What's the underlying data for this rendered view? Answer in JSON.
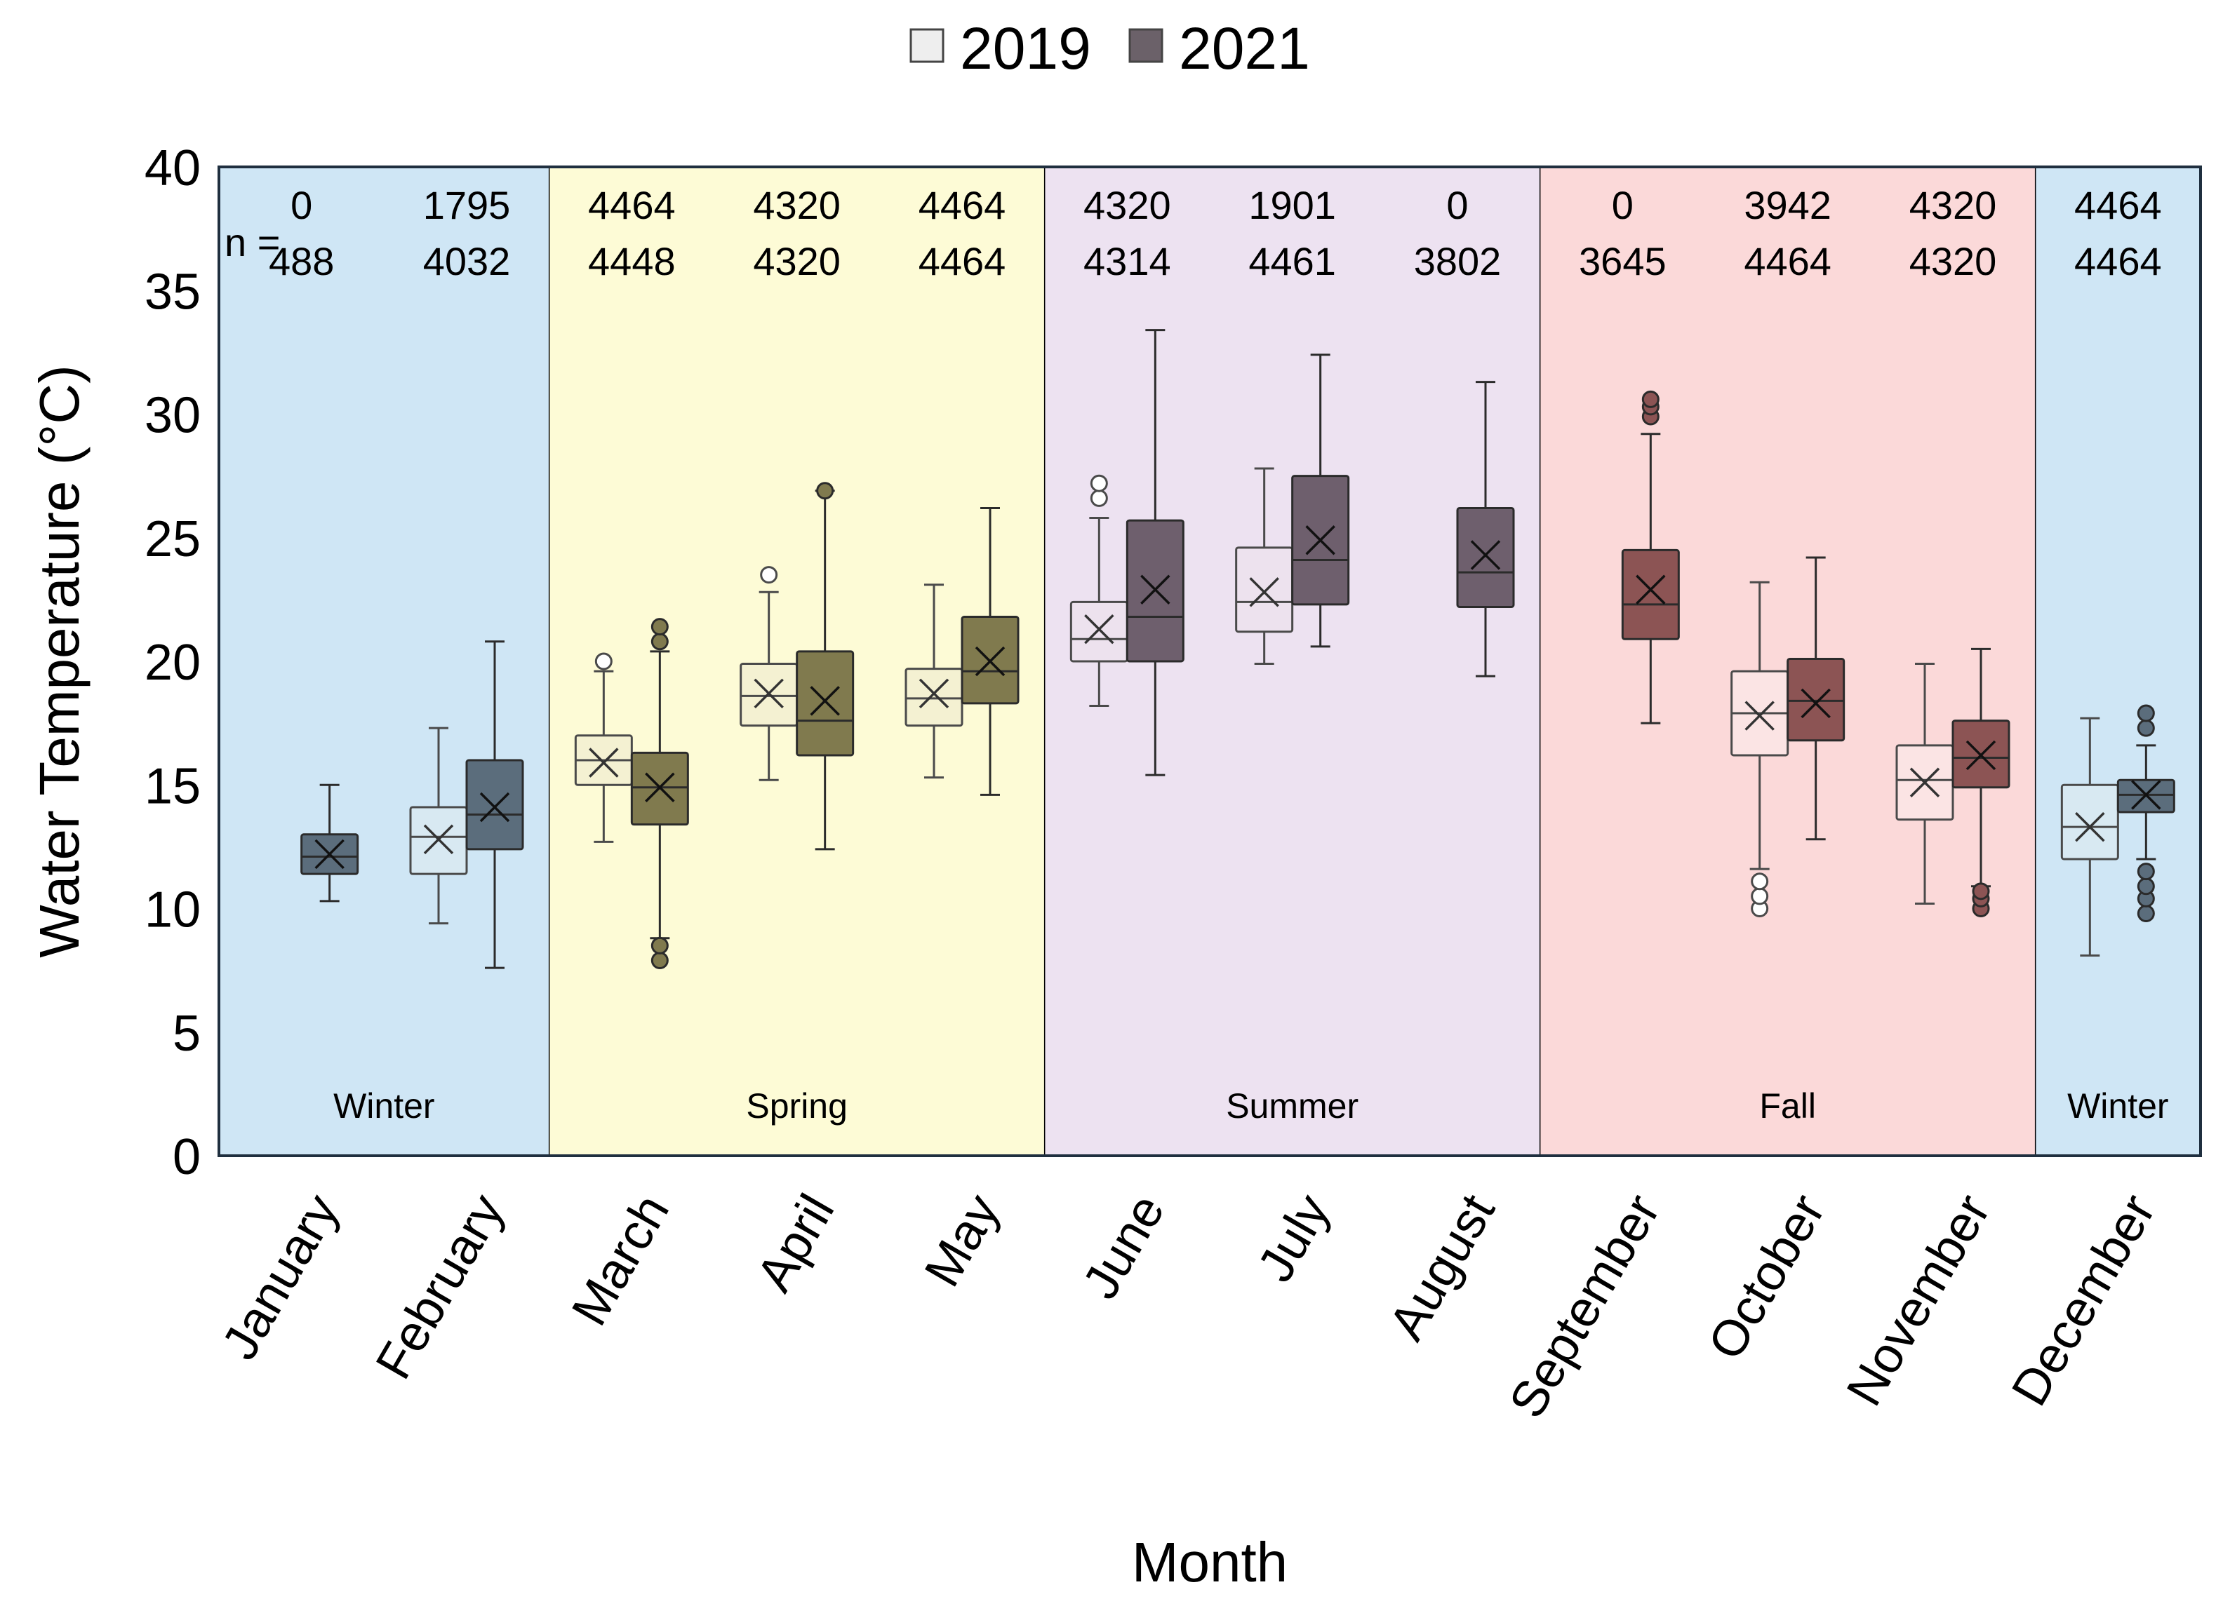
{
  "chart_data": {
    "type": "box",
    "title": "",
    "xlabel": "Month",
    "ylabel": "Water Temperature (°C)",
    "ylim": [
      0,
      40
    ],
    "yticks": [
      0,
      5,
      10,
      15,
      20,
      25,
      30,
      35,
      40
    ],
    "n_label": "n =",
    "legend": [
      {
        "name": "2019",
        "fill": "#eeeeee"
      },
      {
        "name": "2021",
        "fill": "#6b6169"
      }
    ],
    "seasons": [
      {
        "label": "Winter",
        "from": 0,
        "to": 1,
        "color": "#cfe6f5",
        "box_light": "#d8e9f2",
        "box_dark": "#5b6d7c"
      },
      {
        "label": "Spring",
        "from": 2,
        "to": 4,
        "color": "#fdfbd6",
        "box_light": "#f4f1d2",
        "box_dark": "#807a4e"
      },
      {
        "label": "Summer",
        "from": 5,
        "to": 7,
        "color": "#ede2f1",
        "box_light": "#ede2ee",
        "box_dark": "#6e5f6d"
      },
      {
        "label": "Fall",
        "from": 8,
        "to": 10,
        "color": "#fbd9d9",
        "box_light": "#fbe4e4",
        "box_dark": "#8c5454"
      },
      {
        "label": "Winter",
        "from": 11,
        "to": 11,
        "color": "#cfe6f5",
        "box_light": "#d8e9f2",
        "box_dark": "#5b6d7c"
      }
    ],
    "categories": [
      "January",
      "February",
      "March",
      "April",
      "May",
      "June",
      "July",
      "August",
      "September",
      "October",
      "November",
      "December"
    ],
    "n": {
      "2019": [
        "0",
        "1795",
        "4464",
        "4320",
        "4464",
        "4320",
        "1901",
        "0",
        "0",
        "3942",
        "4320",
        "4464"
      ],
      "2021": [
        "488",
        "4032",
        "4448",
        "4320",
        "4464",
        "4314",
        "4461",
        "3802",
        "3645",
        "4464",
        "4320",
        "4464"
      ]
    },
    "series": [
      {
        "name": "2019",
        "boxes": [
          null,
          {
            "min": 9.4,
            "q1": 11.4,
            "median": 12.9,
            "q3": 14.1,
            "max": 17.3,
            "mean": 12.8,
            "outliers": []
          },
          {
            "min": 12.7,
            "q1": 15.0,
            "median": 16.0,
            "q3": 17.0,
            "max": 19.6,
            "mean": 15.9,
            "outliers": [
              20.0
            ]
          },
          {
            "min": 15.2,
            "q1": 17.4,
            "median": 18.6,
            "q3": 19.9,
            "max": 22.8,
            "mean": 18.7,
            "outliers": [
              23.5
            ]
          },
          {
            "min": 15.3,
            "q1": 17.4,
            "median": 18.5,
            "q3": 19.7,
            "max": 23.1,
            "mean": 18.7,
            "outliers": []
          },
          {
            "min": 18.2,
            "q1": 20.0,
            "median": 20.9,
            "q3": 22.4,
            "max": 25.8,
            "mean": 21.3,
            "outliers": [
              26.6,
              27.2
            ]
          },
          {
            "min": 19.9,
            "q1": 21.2,
            "median": 22.4,
            "q3": 24.6,
            "max": 27.8,
            "mean": 22.8,
            "outliers": []
          },
          null,
          null,
          {
            "min": 11.6,
            "q1": 16.2,
            "median": 17.9,
            "q3": 19.6,
            "max": 23.2,
            "mean": 17.8,
            "outliers": [
              10.0,
              10.5,
              11.1
            ]
          },
          {
            "min": 10.2,
            "q1": 13.6,
            "median": 15.2,
            "q3": 16.6,
            "max": 19.9,
            "mean": 15.1,
            "outliers": []
          },
          {
            "min": 8.1,
            "q1": 12.0,
            "median": 13.3,
            "q3": 15.0,
            "max": 17.7,
            "mean": 13.3,
            "outliers": []
          }
        ]
      },
      {
        "name": "2021",
        "boxes": [
          {
            "min": 10.3,
            "q1": 11.4,
            "median": 12.1,
            "q3": 13.0,
            "max": 15.0,
            "mean": 12.2,
            "outliers": []
          },
          {
            "min": 7.6,
            "q1": 12.4,
            "median": 13.8,
            "q3": 16.0,
            "max": 20.8,
            "mean": 14.1,
            "outliers": []
          },
          {
            "min": 8.8,
            "q1": 13.4,
            "median": 14.9,
            "q3": 16.3,
            "max": 20.4,
            "mean": 14.9,
            "outliers": [
              7.9,
              8.5,
              20.8,
              21.4
            ]
          },
          {
            "min": 12.4,
            "q1": 16.2,
            "median": 17.6,
            "q3": 20.4,
            "max": 26.9,
            "mean": 18.4,
            "outliers": [
              26.9
            ]
          },
          {
            "min": 14.6,
            "q1": 18.3,
            "median": 19.6,
            "q3": 21.8,
            "max": 26.2,
            "mean": 20.0,
            "outliers": []
          },
          {
            "min": 15.4,
            "q1": 20.0,
            "median": 21.8,
            "q3": 25.7,
            "max": 33.4,
            "mean": 22.9,
            "outliers": []
          },
          {
            "min": 20.6,
            "q1": 22.3,
            "median": 24.1,
            "q3": 27.5,
            "max": 32.4,
            "mean": 24.9,
            "outliers": []
          },
          {
            "min": 19.4,
            "q1": 22.2,
            "median": 23.6,
            "q3": 26.2,
            "max": 31.3,
            "mean": 24.3,
            "outliers": []
          },
          {
            "min": 17.5,
            "q1": 20.9,
            "median": 22.3,
            "q3": 24.5,
            "max": 29.2,
            "mean": 22.9,
            "outliers": [
              29.9,
              30.3,
              30.6
            ]
          },
          {
            "min": 12.8,
            "q1": 16.8,
            "median": 18.4,
            "q3": 20.1,
            "max": 24.2,
            "mean": 18.3,
            "outliers": []
          },
          {
            "min": 10.9,
            "q1": 14.9,
            "median": 16.1,
            "q3": 17.6,
            "max": 20.5,
            "mean": 16.2,
            "outliers": [
              10.0,
              10.4,
              10.7
            ]
          },
          {
            "min": 12.0,
            "q1": 13.9,
            "median": 14.6,
            "q3": 15.2,
            "max": 16.6,
            "mean": 14.6,
            "outliers": [
              9.8,
              10.4,
              10.9,
              11.5,
              17.3,
              17.9
            ]
          }
        ]
      }
    ]
  }
}
